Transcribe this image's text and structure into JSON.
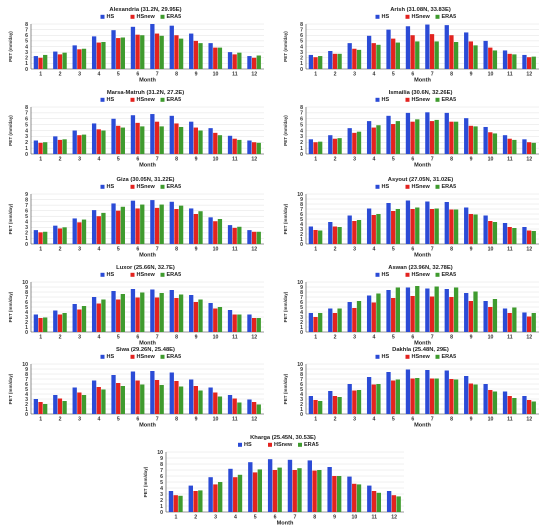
{
  "chart_data": [
    {
      "type": "bar",
      "title": "Alexandria (31.2N, 29.95E)",
      "xlabel": "Month",
      "ylabel": "PET (mm/day)",
      "categories": [
        "1",
        "2",
        "3",
        "4",
        "5",
        "6",
        "7",
        "8",
        "9",
        "10",
        "11",
        "12"
      ],
      "ylim": [
        0,
        8
      ],
      "yticks": [
        0,
        1,
        2,
        3,
        4,
        5,
        6,
        7,
        8
      ],
      "series": [
        {
          "name": "HS",
          "values": [
            2.3,
            3.1,
            4.2,
            5.8,
            6.9,
            7.5,
            8.0,
            7.7,
            6.3,
            4.6,
            3.0,
            2.3
          ]
        },
        {
          "name": "HSnew",
          "values": [
            2.0,
            2.6,
            3.5,
            4.7,
            5.5,
            6.1,
            6.3,
            6.0,
            5.0,
            3.8,
            2.6,
            2.0
          ]
        },
        {
          "name": "ERA5",
          "values": [
            2.5,
            2.9,
            3.6,
            4.8,
            5.6,
            6.0,
            5.9,
            5.4,
            4.6,
            3.8,
            2.9,
            2.4
          ]
        }
      ]
    },
    {
      "type": "bar",
      "title": "Arish (31.08N, 33.83E)",
      "xlabel": "Month",
      "ylabel": "PET (mm/day)",
      "categories": [
        "1",
        "2",
        "3",
        "4",
        "5",
        "6",
        "7",
        "8",
        "9",
        "10",
        "11",
        "12"
      ],
      "ylim": [
        0,
        8
      ],
      "yticks": [
        0,
        1,
        2,
        3,
        4,
        5,
        6,
        7,
        8
      ],
      "series": [
        {
          "name": "HS",
          "values": [
            2.5,
            3.2,
            4.6,
            5.9,
            7.0,
            7.6,
            7.9,
            7.8,
            6.5,
            5.0,
            3.3,
            2.5
          ]
        },
        {
          "name": "HSnew",
          "values": [
            2.1,
            2.7,
            3.6,
            4.6,
            5.4,
            6.0,
            6.2,
            6.0,
            4.9,
            3.8,
            2.7,
            2.1
          ]
        },
        {
          "name": "ERA5",
          "values": [
            2.3,
            2.7,
            3.4,
            4.3,
            4.7,
            4.9,
            4.9,
            4.8,
            4.2,
            3.3,
            2.6,
            2.2
          ]
        }
      ]
    },
    {
      "type": "bar",
      "title": "Marsa-Matruh (31.2N, 27.2E)",
      "xlabel": "Month",
      "ylabel": "PET (mm/day)",
      "categories": [
        "1",
        "2",
        "3",
        "4",
        "5",
        "6",
        "7",
        "8",
        "9",
        "10",
        "11",
        "12"
      ],
      "ylim": [
        0,
        8
      ],
      "yticks": [
        0,
        1,
        2,
        3,
        4,
        5,
        6,
        7,
        8
      ],
      "series": [
        {
          "name": "HS",
          "values": [
            2.3,
            3.0,
            4.0,
            5.2,
            6.0,
            6.6,
            6.8,
            6.5,
            5.5,
            4.4,
            3.1,
            2.3
          ]
        },
        {
          "name": "HSnew",
          "values": [
            1.9,
            2.4,
            3.2,
            4.2,
            4.8,
            5.3,
            5.5,
            5.2,
            4.5,
            3.6,
            2.6,
            2.0
          ]
        },
        {
          "name": "ERA5",
          "values": [
            2.0,
            2.5,
            3.3,
            4.0,
            4.5,
            4.7,
            4.7,
            4.6,
            4.0,
            3.2,
            2.4,
            1.9
          ]
        }
      ]
    },
    {
      "type": "bar",
      "title": "Ismailia (30.6N, 32.26E)",
      "xlabel": "Month",
      "ylabel": "PET (mm/day)",
      "categories": [
        "1",
        "2",
        "3",
        "4",
        "5",
        "6",
        "7",
        "8",
        "9",
        "10",
        "11",
        "12"
      ],
      "ylim": [
        0,
        8
      ],
      "yticks": [
        0,
        1,
        2,
        3,
        4,
        5,
        6,
        7,
        8
      ],
      "series": [
        {
          "name": "HS",
          "values": [
            2.5,
            3.2,
            4.4,
            5.6,
            6.5,
            7.0,
            7.1,
            7.0,
            6.1,
            4.6,
            3.2,
            2.5
          ]
        },
        {
          "name": "HSnew",
          "values": [
            2.0,
            2.6,
            3.6,
            4.5,
            5.1,
            5.5,
            5.6,
            5.5,
            4.8,
            3.7,
            2.6,
            2.0
          ]
        },
        {
          "name": "ERA5",
          "values": [
            2.1,
            2.7,
            3.8,
            4.9,
            5.6,
            5.9,
            5.8,
            5.5,
            4.7,
            3.5,
            2.4,
            1.9
          ]
        }
      ]
    },
    {
      "type": "bar",
      "title": "Giza (30.05N, 31.22E)",
      "xlabel": "Month",
      "ylabel": "PET (mm/day)",
      "categories": [
        "1",
        "2",
        "3",
        "4",
        "5",
        "6",
        "7",
        "8",
        "9",
        "10",
        "11",
        "12"
      ],
      "ylim": [
        0,
        9
      ],
      "yticks": [
        0,
        1,
        2,
        3,
        4,
        5,
        6,
        7,
        8,
        9
      ],
      "series": [
        {
          "name": "HS",
          "values": [
            2.5,
            3.3,
            4.6,
            6.1,
            7.3,
            7.8,
            7.9,
            7.6,
            6.4,
            4.8,
            3.4,
            2.5
          ]
        },
        {
          "name": "HSnew",
          "values": [
            2.1,
            2.8,
            3.9,
            5.0,
            6.0,
            6.4,
            6.5,
            6.3,
            5.4,
            4.1,
            2.9,
            2.2
          ]
        },
        {
          "name": "ERA5",
          "values": [
            2.2,
            3.0,
            4.4,
            5.6,
            6.7,
            7.1,
            7.1,
            6.9,
            5.9,
            4.5,
            3.1,
            2.2
          ]
        }
      ]
    },
    {
      "type": "bar",
      "title": "Asyout (27.05N, 31.02E)",
      "xlabel": "Month",
      "ylabel": "PET (mm/day)",
      "categories": [
        "1",
        "2",
        "3",
        "4",
        "5",
        "6",
        "7",
        "8",
        "9",
        "10",
        "11",
        "12"
      ],
      "ylim": [
        0,
        10
      ],
      "yticks": [
        0,
        1,
        2,
        3,
        4,
        5,
        6,
        7,
        8,
        9,
        10
      ],
      "series": [
        {
          "name": "HS",
          "values": [
            3.5,
            4.4,
            5.7,
            7.1,
            8.2,
            8.7,
            8.5,
            8.4,
            7.3,
            5.7,
            4.2,
            3.4
          ]
        },
        {
          "name": "HSnew",
          "values": [
            2.8,
            3.5,
            4.6,
            5.8,
            6.6,
            7.0,
            7.0,
            6.9,
            6.0,
            4.6,
            3.4,
            2.7
          ]
        },
        {
          "name": "ERA5",
          "values": [
            2.7,
            3.4,
            4.8,
            6.0,
            7.0,
            7.3,
            7.1,
            6.9,
            5.9,
            4.4,
            3.2,
            2.6
          ]
        }
      ]
    },
    {
      "type": "bar",
      "title": "Luxor (25.66N, 32.7E)",
      "xlabel": "Month",
      "ylabel": "PET (mm/day)",
      "categories": [
        "1",
        "2",
        "3",
        "4",
        "5",
        "6",
        "7",
        "8",
        "9",
        "10",
        "11",
        "12"
      ],
      "ylim": [
        0,
        10
      ],
      "yticks": [
        0,
        1,
        2,
        3,
        4,
        5,
        6,
        7,
        8,
        9,
        10
      ],
      "series": [
        {
          "name": "HS",
          "values": [
            3.5,
            4.3,
            5.6,
            7.0,
            8.2,
            8.6,
            8.5,
            8.4,
            7.4,
            5.8,
            4.4,
            3.5
          ]
        },
        {
          "name": "HSnew",
          "values": [
            2.8,
            3.5,
            4.5,
            5.7,
            6.5,
            6.9,
            6.9,
            6.8,
            6.0,
            4.7,
            3.5,
            2.8
          ]
        },
        {
          "name": "ERA5",
          "values": [
            2.9,
            3.8,
            5.2,
            6.5,
            7.6,
            7.9,
            7.8,
            7.5,
            6.5,
            5.0,
            3.5,
            2.8
          ]
        }
      ]
    },
    {
      "type": "bar",
      "title": "Aswan (23.96N, 32.78E)",
      "xlabel": "Month",
      "ylabel": "PET (mm/day)",
      "categories": [
        "1",
        "2",
        "3",
        "4",
        "5",
        "6",
        "7",
        "8",
        "9",
        "10",
        "11",
        "12"
      ],
      "ylim": [
        0,
        10
      ],
      "yticks": [
        0,
        1,
        2,
        3,
        4,
        5,
        6,
        7,
        8,
        9,
        10
      ],
      "series": [
        {
          "name": "HS",
          "values": [
            3.8,
            4.7,
            6.0,
            7.3,
            8.4,
            8.9,
            8.7,
            8.6,
            7.8,
            6.2,
            4.7,
            3.9
          ]
        },
        {
          "name": "HSnew",
          "values": [
            3.0,
            3.8,
            4.8,
            5.9,
            6.8,
            7.2,
            7.1,
            7.0,
            6.2,
            5.0,
            3.8,
            3.1
          ]
        },
        {
          "name": "ERA5",
          "values": [
            3.8,
            4.7,
            6.2,
            7.7,
            8.9,
            9.2,
            9.1,
            8.9,
            8.1,
            6.6,
            4.9,
            3.8
          ]
        }
      ]
    },
    {
      "type": "bar",
      "title": "Siwa (29.26N, 25.48E)",
      "xlabel": "Month",
      "ylabel": "PET (mm/day)",
      "categories": [
        "1",
        "2",
        "3",
        "4",
        "5",
        "6",
        "7",
        "8",
        "9",
        "10",
        "11",
        "12"
      ],
      "ylim": [
        0,
        10
      ],
      "yticks": [
        0,
        1,
        2,
        3,
        4,
        5,
        6,
        7,
        8,
        9,
        10
      ],
      "series": [
        {
          "name": "HS",
          "values": [
            3.0,
            3.8,
            5.3,
            6.7,
            7.8,
            8.5,
            8.6,
            8.3,
            6.9,
            5.3,
            3.8,
            2.9
          ]
        },
        {
          "name": "HSnew",
          "values": [
            2.4,
            3.1,
            4.3,
            5.4,
            6.2,
            6.7,
            6.8,
            6.6,
            5.6,
            4.3,
            3.1,
            2.4
          ]
        },
        {
          "name": "ERA5",
          "values": [
            2.0,
            2.6,
            3.8,
            4.9,
            5.6,
            5.9,
            5.8,
            5.5,
            4.7,
            3.5,
            2.3,
            1.9
          ]
        }
      ]
    },
    {
      "type": "bar",
      "title": "Dakhla (25.48N, 29E)",
      "xlabel": "Month",
      "ylabel": "PET (mm/day)",
      "categories": [
        "1",
        "2",
        "3",
        "4",
        "5",
        "6",
        "7",
        "8",
        "9",
        "10",
        "11",
        "12"
      ],
      "ylim": [
        0,
        10
      ],
      "yticks": [
        0,
        1,
        2,
        3,
        4,
        5,
        6,
        7,
        8,
        9,
        10
      ],
      "series": [
        {
          "name": "HS",
          "values": [
            3.6,
            4.6,
            6.0,
            7.4,
            8.4,
            8.9,
            8.8,
            8.7,
            7.6,
            6.0,
            4.5,
            3.6
          ]
        },
        {
          "name": "HSnew",
          "values": [
            2.8,
            3.6,
            4.7,
            5.9,
            6.7,
            7.1,
            7.1,
            7.0,
            6.1,
            4.8,
            3.6,
            2.8
          ]
        },
        {
          "name": "ERA5",
          "values": [
            2.6,
            3.4,
            4.8,
            6.0,
            6.9,
            7.2,
            7.1,
            6.9,
            5.9,
            4.5,
            3.2,
            2.5
          ]
        }
      ]
    },
    {
      "type": "bar",
      "title": "Kharga (25.45N, 30.53E)",
      "xlabel": "Month",
      "ylabel": "PET (mm/day)",
      "categories": [
        "1",
        "2",
        "3",
        "4",
        "5",
        "6",
        "7",
        "8",
        "9",
        "10",
        "11",
        "12"
      ],
      "ylim": [
        0,
        10
      ],
      "yticks": [
        0,
        1,
        2,
        3,
        4,
        5,
        6,
        7,
        8,
        9,
        10
      ],
      "series": [
        {
          "name": "HS",
          "values": [
            3.5,
            4.4,
            5.8,
            7.2,
            8.3,
            8.8,
            8.7,
            8.6,
            7.5,
            5.9,
            4.4,
            3.5
          ]
        },
        {
          "name": "HSnew",
          "values": [
            2.8,
            3.5,
            4.6,
            5.8,
            6.6,
            7.0,
            7.0,
            6.9,
            6.0,
            4.7,
            3.5,
            2.8
          ]
        },
        {
          "name": "ERA5",
          "values": [
            2.7,
            3.6,
            5.0,
            6.2,
            7.1,
            7.4,
            7.3,
            7.0,
            6.0,
            4.6,
            3.2,
            2.6
          ]
        }
      ]
    }
  ],
  "colors": {
    "HS": "#2b4bd6",
    "HSnew": "#e3231f",
    "ERA5": "#3f9b2e",
    "grid": "#e0e0e0",
    "axis": "#444444"
  }
}
